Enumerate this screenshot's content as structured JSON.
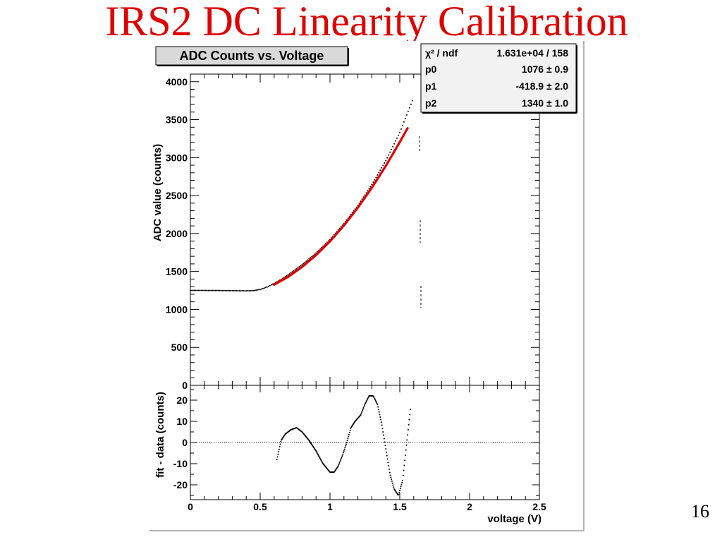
{
  "slide": {
    "title": "IRS2 DC Linearity Calibration",
    "number": "16"
  },
  "chart_data": [
    {
      "type": "scatter",
      "title": "ADC Counts vs. Voltage",
      "xlabel": "",
      "ylabel": "ADC value (counts)",
      "xlim": [
        0,
        2.5
      ],
      "ylim": [
        0,
        4100
      ],
      "yticks": [
        "0",
        "500",
        "1000",
        "1500",
        "2000",
        "2500",
        "3000",
        "3500",
        "4000"
      ],
      "series": [
        {
          "color": "#000000",
          "x": [
            0,
            0.1,
            0.2,
            0.3,
            0.4,
            0.45,
            0.5,
            0.55,
            0.6,
            0.65,
            0.7,
            0.8,
            0.9,
            1.0,
            1.1,
            1.2,
            1.3,
            1.4,
            1.5,
            1.6
          ],
          "y": [
            1250,
            1250,
            1249,
            1247,
            1245,
            1248,
            1262,
            1295,
            1342,
            1395,
            1456,
            1590,
            1742,
            1920,
            2130,
            2370,
            2645,
            2960,
            3330,
            3795
          ]
        },
        {
          "color": "#e00000",
          "x": [
            0.6,
            0.7,
            0.8,
            0.9,
            1.0,
            1.1,
            1.2,
            1.3,
            1.4,
            1.5,
            1.56
          ],
          "y": [
            1326,
            1430,
            1560,
            1716,
            1898,
            2107,
            2342,
            2604,
            2891,
            3205,
            3400
          ]
        }
      ],
      "stats_box": {
        "rows": [
          {
            "label": "χ² / ndf",
            "value": "1.631e+04 / 158"
          },
          {
            "label": "p0",
            "value": "1076 ± 0.9"
          },
          {
            "label": "p1",
            "value": "-418.9 ± 2.0"
          },
          {
            "label": "p2",
            "value": "1340 ± 1.0"
          }
        ]
      }
    },
    {
      "type": "scatter",
      "xlabel": "voltage (V)",
      "ylabel": "fit - data (counts)",
      "xlim": [
        0,
        2.5
      ],
      "ylim": [
        -27,
        27
      ],
      "xticks": [
        "0",
        "0.5",
        "1",
        "1.5",
        "2",
        "2.5"
      ],
      "yticks": [
        "-20",
        "-10",
        "0",
        "10",
        "20"
      ],
      "reference_line": 0,
      "series": [
        {
          "color": "#000000",
          "x": [
            0.62,
            0.65,
            0.68,
            0.72,
            0.76,
            0.8,
            0.85,
            0.9,
            0.95,
            1.0,
            1.03,
            1.06,
            1.09,
            1.12,
            1.15,
            1.18,
            1.22,
            1.25,
            1.28,
            1.31,
            1.34,
            1.37,
            1.4,
            1.43,
            1.46,
            1.49,
            1.52,
            1.55,
            1.58
          ],
          "y": [
            -8,
            1,
            4,
            6,
            7,
            5,
            1,
            -4,
            -10,
            -14,
            -14,
            -11,
            -6,
            0,
            7,
            10,
            13,
            18,
            22,
            22,
            18,
            9,
            -3,
            -15,
            -22,
            -25,
            -18,
            0,
            18
          ]
        }
      ]
    }
  ]
}
